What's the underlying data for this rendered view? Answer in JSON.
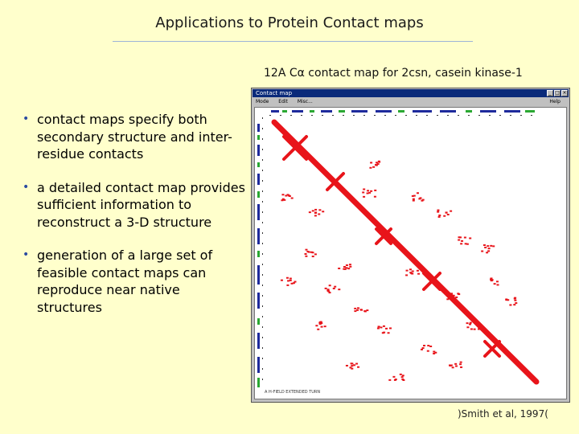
{
  "slide": {
    "title": "Applications to Protein Contact maps",
    "caption_prefix": "12A  C",
    "caption_alpha": "α",
    "caption_rest": " contact map for 2csn, casein kinase-1",
    "credit": ")Smith et al, 1997(",
    "bullets": [
      "contact maps specify both secondary structure and inter-residue contacts",
      "a detailed contact map provides sufficient information to reconstruct a 3-D structure",
      "generation of a large set of feasible contact maps can reproduce near native structures"
    ]
  },
  "window": {
    "title": "Contact map",
    "menu": [
      "Mode",
      "Edit",
      "Misc..."
    ],
    "help": "Help",
    "legend": "A  H-FIELD  EXTENDED  TURN",
    "colors": {
      "contacts": "#e8141a",
      "helix": "#1e2a9c",
      "strand": "#2aa832",
      "titlebar": "#0a2a7a"
    }
  }
}
